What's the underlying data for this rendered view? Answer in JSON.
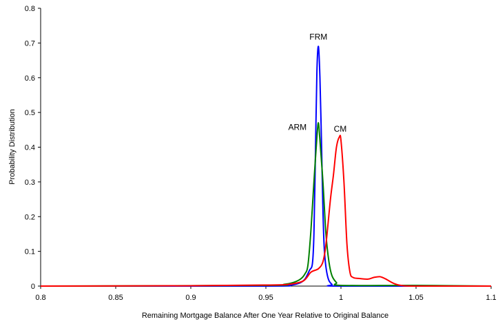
{
  "chart_data": {
    "type": "line",
    "title": "",
    "xlabel": "Remaining Mortgage Balance After One Year Relative to Original Balance",
    "ylabel": "Probability Distribution",
    "xlim": [
      0.8,
      1.1
    ],
    "ylim": [
      0,
      0.8
    ],
    "xticks": [
      "0.8",
      "0.85",
      "0.9",
      "0.95",
      "1",
      "1.05",
      "1.1"
    ],
    "yticks": [
      "0",
      "0.1",
      "0.2",
      "0.3",
      "0.4",
      "0.5",
      "0.6",
      "0.7",
      "0.8"
    ],
    "grid": false,
    "legend": "none",
    "series": [
      {
        "name": "FRM",
        "color": "#0000ff",
        "x": [
          0.8,
          0.95,
          0.965,
          0.972,
          0.976,
          0.979,
          0.981,
          0.982,
          0.983,
          0.984,
          0.985,
          0.986,
          0.987,
          0.988,
          0.989,
          0.991,
          0.994,
          1.0,
          1.1
        ],
        "y": [
          0,
          0,
          0.002,
          0.008,
          0.02,
          0.045,
          0.065,
          0.15,
          0.38,
          0.62,
          0.69,
          0.6,
          0.42,
          0.22,
          0.1,
          0.03,
          0.005,
          0,
          0
        ]
      },
      {
        "name": "ARM",
        "color": "#008000",
        "x": [
          0.8,
          0.95,
          0.962,
          0.968,
          0.973,
          0.976,
          0.978,
          0.98,
          0.982,
          0.984,
          0.985,
          0.986,
          0.988,
          0.99,
          0.992,
          0.994,
          0.997,
          1.0,
          1.05,
          1.1
        ],
        "y": [
          0,
          0.002,
          0.005,
          0.01,
          0.02,
          0.035,
          0.06,
          0.16,
          0.3,
          0.43,
          0.47,
          0.42,
          0.3,
          0.15,
          0.07,
          0.03,
          0.01,
          0.002,
          0.002,
          0
        ]
      },
      {
        "name": "CM",
        "color": "#ff0000",
        "x": [
          0.8,
          0.9,
          0.95,
          0.965,
          0.975,
          0.98,
          0.985,
          0.988,
          0.99,
          0.993,
          0.995,
          0.997,
          0.999,
          1.0,
          1.002,
          1.004,
          1.006,
          1.008,
          1.012,
          1.018,
          1.022,
          1.026,
          1.03,
          1.035,
          1.04,
          1.05,
          1.1
        ],
        "y": [
          0,
          0.001,
          0.003,
          0.005,
          0.015,
          0.04,
          0.05,
          0.07,
          0.12,
          0.25,
          0.32,
          0.4,
          0.43,
          0.42,
          0.3,
          0.12,
          0.04,
          0.025,
          0.022,
          0.02,
          0.025,
          0.027,
          0.02,
          0.008,
          0.002,
          0,
          0
        ]
      }
    ],
    "annotations": [
      {
        "text": "FRM",
        "series": "FRM",
        "x": 0.985,
        "y": 0.71
      },
      {
        "text": "ARM",
        "series": "ARM",
        "x": 0.971,
        "y": 0.45
      },
      {
        "text": "CM",
        "series": "CM",
        "x": 0.9995,
        "y": 0.445
      }
    ]
  }
}
